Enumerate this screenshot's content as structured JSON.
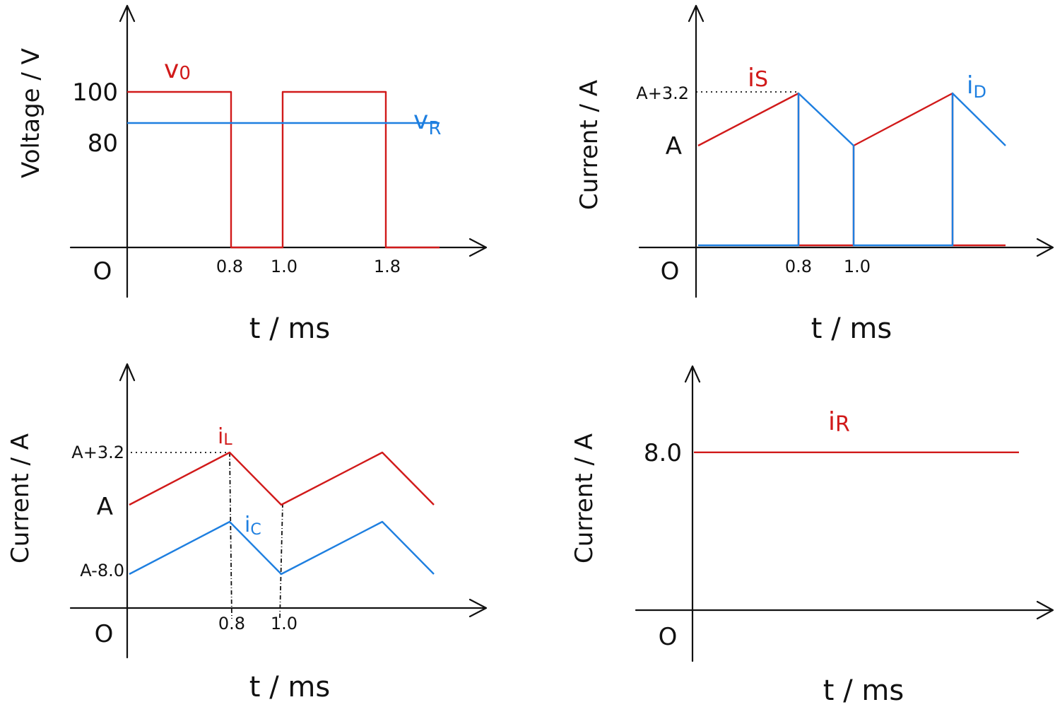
{
  "colors": {
    "red": "#d11a1a",
    "blue": "#1e7fe0",
    "axis": "#111111"
  },
  "chart_data": [
    {
      "type": "line",
      "xlabel": "t / ms",
      "ylabel": "Voltage / V",
      "origin_label": "O",
      "x_ticks": [
        "0.8",
        "1.0",
        "1.8"
      ],
      "y_ticks": [
        "100",
        "80"
      ],
      "series": [
        {
          "name": "v0",
          "label_main": "v",
          "label_sub": "0",
          "color": "#d11a1a",
          "x": [
            0,
            0.8,
            0.8,
            1.0,
            1.0,
            1.8,
            1.8,
            2.2
          ],
          "y": [
            100,
            100,
            0,
            0,
            100,
            100,
            0,
            0
          ]
        },
        {
          "name": "vR",
          "label_main": "v",
          "label_sub": "R",
          "color": "#1e7fe0",
          "x": [
            0,
            2.2
          ],
          "y": [
            80,
            80
          ]
        }
      ]
    },
    {
      "type": "line",
      "xlabel": "t / ms",
      "ylabel": "Current / A",
      "origin_label": "O",
      "x_ticks": [
        "0.8",
        "1.0"
      ],
      "y_ticks": [
        "A+3.2",
        "A"
      ],
      "series": [
        {
          "name": "iS",
          "label_main": "i",
          "label_sub": "S",
          "color": "#d11a1a",
          "x": [
            0,
            0.8,
            0.8,
            1.0,
            1.0,
            1.8,
            1.8,
            2.2
          ],
          "y": [
            "A",
            "A+3.2",
            0,
            0,
            "A",
            "A+3.2",
            0,
            0
          ]
        },
        {
          "name": "iD",
          "label_main": "i",
          "label_sub": "D",
          "color": "#1e7fe0",
          "x": [
            0,
            0.8,
            0.8,
            1.0,
            1.0,
            1.8,
            1.8,
            2.2
          ],
          "y": [
            0,
            0,
            "A+3.2",
            "A",
            0,
            0,
            "A+3.2",
            "A"
          ]
        }
      ]
    },
    {
      "type": "line",
      "xlabel": "t / ms",
      "ylabel": "Current / A",
      "origin_label": "O",
      "x_ticks": [
        "0.8",
        "1.0"
      ],
      "y_ticks": [
        "A+3.2",
        "A",
        "A-8.0"
      ],
      "series": [
        {
          "name": "iL",
          "label_main": "i",
          "label_sub": "L",
          "color": "#d11a1a",
          "x": [
            0,
            0.8,
            1.0,
            1.8,
            2.2
          ],
          "y": [
            "A",
            "A+3.2",
            "A",
            "A+3.2",
            "A"
          ]
        },
        {
          "name": "iC",
          "label_main": "i",
          "label_sub": "C",
          "color": "#1e7fe0",
          "x": [
            0,
            0.8,
            1.0,
            1.8,
            2.2
          ],
          "y": [
            "A-8.0",
            "A-4.8",
            "A-8.0",
            "A-4.8",
            "A-8.0"
          ]
        }
      ]
    },
    {
      "type": "line",
      "xlabel": "t / ms",
      "ylabel": "Current / A",
      "origin_label": "O",
      "x_ticks": [],
      "y_ticks": [
        "8.0"
      ],
      "series": [
        {
          "name": "iR",
          "label_main": "i",
          "label_sub": "R",
          "color": "#d11a1a",
          "x": [
            0,
            2.2
          ],
          "y": [
            8.0,
            8.0
          ]
        }
      ]
    }
  ]
}
